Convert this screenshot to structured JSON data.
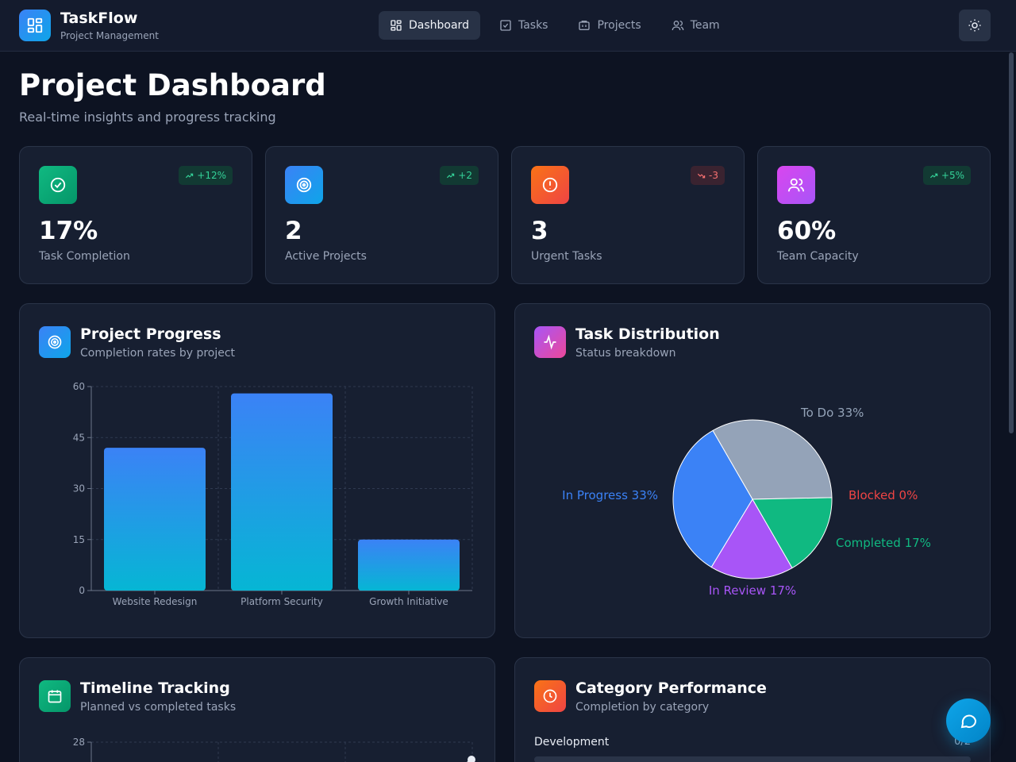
{
  "app": {
    "title": "TaskFlow",
    "subtitle": "Project Management"
  },
  "nav": [
    {
      "label": "Dashboard",
      "icon": "grid-icon",
      "active": true
    },
    {
      "label": "Tasks",
      "icon": "checkbox-icon",
      "active": false
    },
    {
      "label": "Projects",
      "icon": "folder-icon",
      "active": false
    },
    {
      "label": "Team",
      "icon": "users-icon",
      "active": false
    }
  ],
  "page": {
    "title": "Project Dashboard",
    "subtitle": "Real-time insights and progress tracking"
  },
  "stats": [
    {
      "value": "17%",
      "label": "Task Completion",
      "badge": "+12%",
      "trend": "up",
      "icon": "check-circle-icon",
      "color": "#10b981"
    },
    {
      "value": "2",
      "label": "Active Projects",
      "badge": "+2",
      "trend": "up",
      "icon": "target-icon",
      "color": "#3b82f6"
    },
    {
      "value": "3",
      "label": "Urgent Tasks",
      "badge": "-3",
      "trend": "down",
      "icon": "alert-icon",
      "color": "#f97316"
    },
    {
      "value": "60%",
      "label": "Team Capacity",
      "badge": "+5%",
      "trend": "up",
      "icon": "users-icon",
      "color": "#d946ef"
    }
  ],
  "panels": {
    "progress": {
      "title": "Project Progress",
      "subtitle": "Completion rates by project"
    },
    "distribution": {
      "title": "Task Distribution",
      "subtitle": "Status breakdown"
    },
    "timeline": {
      "title": "Timeline Tracking",
      "subtitle": "Planned vs completed tasks"
    },
    "category": {
      "title": "Category Performance",
      "subtitle": "Completion by category"
    }
  },
  "chart_data": [
    {
      "type": "bar",
      "categories": [
        "Website Redesign",
        "Platform Security",
        "Growth Initiative"
      ],
      "values": [
        42,
        58,
        15
      ],
      "ylim": [
        0,
        60
      ],
      "yticks": [
        0,
        15,
        30,
        45,
        60
      ],
      "grid": true
    },
    {
      "type": "pie",
      "slices": [
        {
          "label": "To Do 33%",
          "value": 33,
          "color": "#94a3b8"
        },
        {
          "label": "Blocked 0%",
          "value": 0,
          "color": "#ef4444"
        },
        {
          "label": "Completed 17%",
          "value": 17,
          "color": "#10b981"
        },
        {
          "label": "In Review 17%",
          "value": 17,
          "color": "#a855f7"
        },
        {
          "label": "In Progress 33%",
          "value": 33,
          "color": "#3b82f6"
        }
      ]
    },
    {
      "type": "line",
      "yticks_visible": [
        28
      ],
      "grid": true
    }
  ],
  "categories": [
    {
      "label": "Development",
      "count": "0/2",
      "fraction": 0
    }
  ]
}
